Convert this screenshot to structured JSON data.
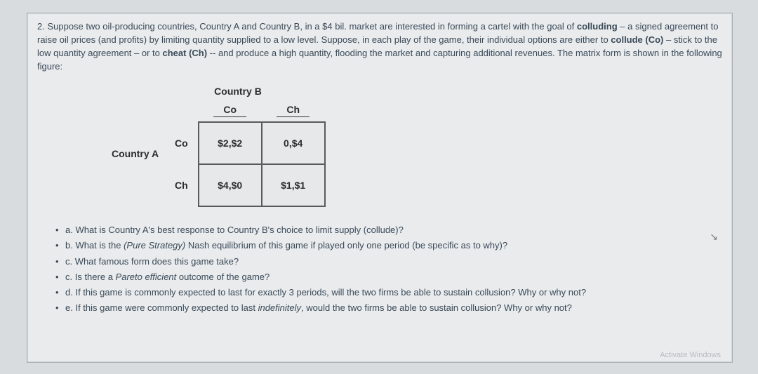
{
  "problem": {
    "number": "2.",
    "text_before_bold1": "Suppose two oil-producing countries, Country A and Country B, in a $4 bil. market are interested in forming a cartel with the goal of ",
    "bold1": "colluding",
    "text_after_bold1": " – a signed agreement to raise oil prices (and profits) by limiting quantity supplied to a low level. Suppose, in each play of the game, their individual options are either to ",
    "bold2": "collude (Co)",
    "text_after_bold2": " – stick to the low quantity agreement – or to ",
    "bold3": "cheat (Ch)",
    "text_after_bold3": " -- and produce a high quantity, flooding the market and capturing additional revenues. The matrix form is shown in the following figure:"
  },
  "matrix": {
    "colPlayer": "Country B",
    "rowPlayer": "Country A",
    "colHeaders": [
      "Co",
      "Ch"
    ],
    "rowHeaders": [
      "Co",
      "Ch"
    ],
    "cells": [
      [
        "$2,$2",
        "0,$4"
      ],
      [
        "$4,$0",
        "$1,$1"
      ]
    ]
  },
  "questions": {
    "a": "a. What is Country A's best response to Country B's choice to limit supply (collude)?",
    "b_pre": "b. What is the ",
    "b_em": "(Pure Strategy)",
    "b_post": " Nash equilibrium of this game if played only one period (be specific as to why)?",
    "c1": "c. What famous form does this game take?",
    "c2_pre": "c. Is there a ",
    "c2_em": "Pareto efficient",
    "c2_post": " outcome of the game?",
    "d": "d. If this game is commonly expected to last for exactly 3 periods, will the two firms be able to sustain collusion? Why or why not?",
    "e_pre": "e. If this game were commonly expected to last ",
    "e_em": "indefinitely",
    "e_post": ", would the two firms be able to sustain collusion? Why or why not?"
  },
  "watermark": "Activate Windows",
  "cursor": "↘"
}
